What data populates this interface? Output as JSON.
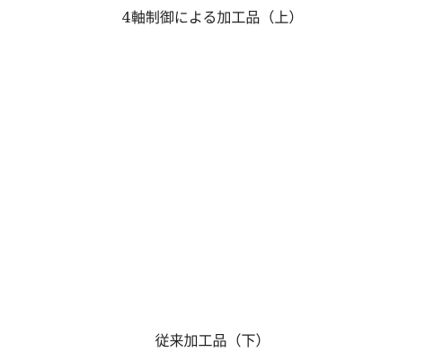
{
  "header": {
    "title": "4軸制御による加工品（上）"
  },
  "footer": {
    "caption": "従来加工品（下）"
  }
}
